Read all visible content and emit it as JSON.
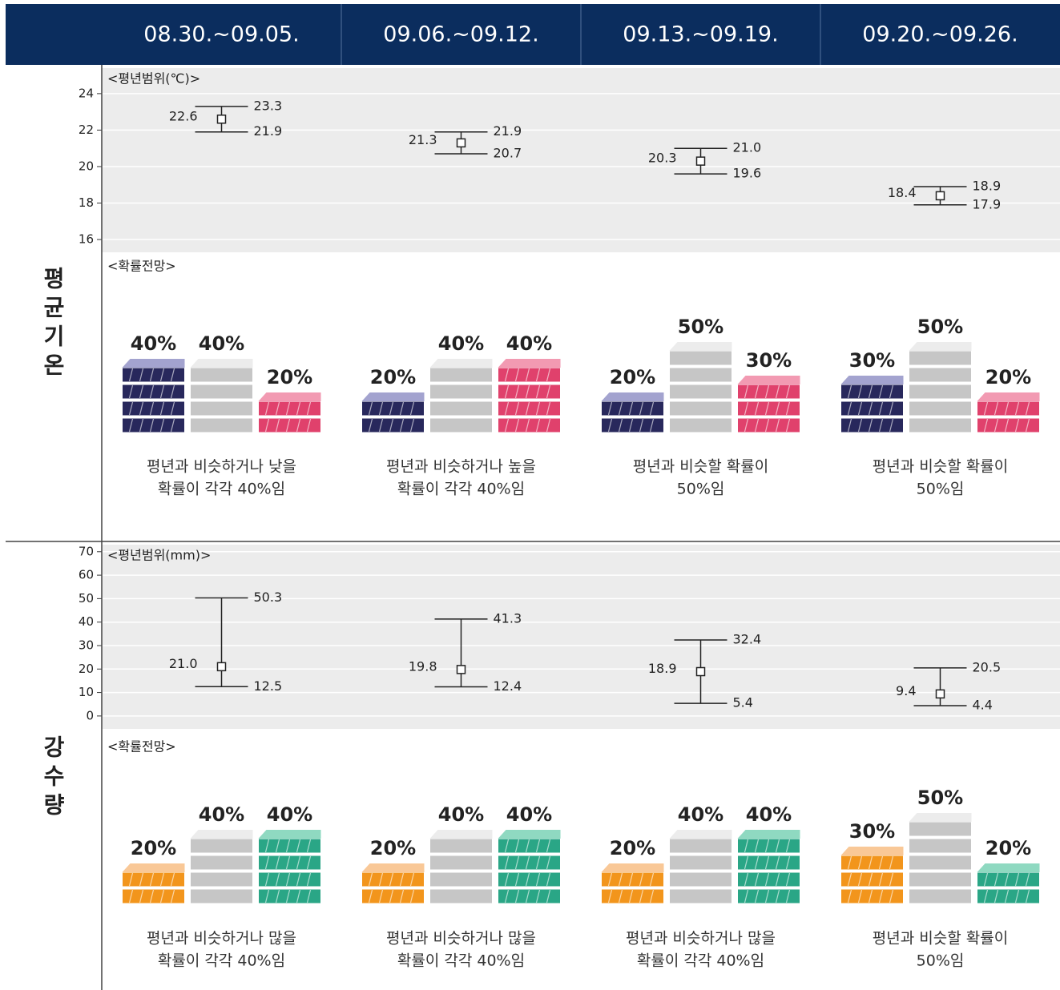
{
  "header": {
    "weeks": [
      "08.30.~09.05.",
      "09.06.~09.12.",
      "09.13.~09.19.",
      "09.20.~09.26."
    ]
  },
  "sections": [
    {
      "title": "평균기온",
      "range": {
        "label": "<평년범위(℃)>",
        "ylim": [
          15.3,
          25.4
        ],
        "yticks": [
          16,
          18,
          20,
          22,
          24
        ],
        "points": [
          {
            "mean": 22.6,
            "high": 23.3,
            "low": 21.9
          },
          {
            "mean": 21.3,
            "high": 21.9,
            "low": 20.7
          },
          {
            "mean": 20.3,
            "high": {
              "value": 21,
              "label": "21.0"
            },
            "low": 19.6
          },
          {
            "mean": 18.4,
            "high": 18.9,
            "low": 17.9
          }
        ]
      },
      "outlook_label": "<확률전망>",
      "front_colors": [
        "#28285c",
        "#c6c6c6",
        "#e0416c"
      ],
      "top_colors": [
        "#a3a3cf",
        "#ececec",
        "#f29ab2"
      ],
      "outlooks": [
        {
          "values": [
            40,
            40,
            20
          ],
          "value_labels": [
            "40%",
            "40%",
            "20%"
          ],
          "text": [
            "평년과 비슷하거나 낮을",
            "확률이 각각 40%임"
          ]
        },
        {
          "values": [
            20,
            40,
            40
          ],
          "value_labels": [
            "20%",
            "40%",
            "40%"
          ],
          "text": [
            "평년과 비슷하거나 높을",
            "확률이 각각 40%임"
          ]
        },
        {
          "values": [
            20,
            50,
            30
          ],
          "value_labels": [
            "20%",
            "50%",
            "30%"
          ],
          "text": [
            "평년과 비슷할 확률이",
            "50%임"
          ]
        },
        {
          "values": [
            30,
            50,
            20
          ],
          "value_labels": [
            "30%",
            "50%",
            "20%"
          ],
          "text": [
            "평년과 비슷할 확률이",
            "50%임"
          ]
        }
      ]
    },
    {
      "title": "강수량",
      "range": {
        "label": "<평년범위(mm)>",
        "ylim": [
          -5.5,
          73
        ],
        "yticks": [
          0,
          10,
          20,
          30,
          40,
          50,
          60,
          70
        ],
        "points": [
          {
            "mean": {
              "value": 21,
              "label": "21.0"
            },
            "high": 50.3,
            "low": 12.5
          },
          {
            "mean": 19.8,
            "high": 41.3,
            "low": 12.4
          },
          {
            "mean": 18.9,
            "high": 32.4,
            "low": 5.4
          },
          {
            "mean": 9.4,
            "high": 20.5,
            "low": 4.4
          }
        ]
      },
      "outlook_label": "<확률전망>",
      "front_colors": [
        "#f2951c",
        "#c6c6c6",
        "#2aa686"
      ],
      "top_colors": [
        "#f9c897",
        "#ececec",
        "#8fd9c1"
      ],
      "outlooks": [
        {
          "values": [
            20,
            40,
            40
          ],
          "value_labels": [
            "20%",
            "40%",
            "40%"
          ],
          "text": [
            "평년과 비슷하거나 많을",
            "확률이 각각 40%임"
          ]
        },
        {
          "values": [
            20,
            40,
            40
          ],
          "value_labels": [
            "20%",
            "40%",
            "40%"
          ],
          "text": [
            "평년과 비슷하거나 많을",
            "확률이 각각 40%임"
          ]
        },
        {
          "values": [
            20,
            40,
            40
          ],
          "value_labels": [
            "20%",
            "40%",
            "40%"
          ],
          "text": [
            "평년과 비슷하거나 많을",
            "확률이 각각 40%임"
          ]
        },
        {
          "values": [
            30,
            50,
            20
          ],
          "value_labels": [
            "30%",
            "50%",
            "20%"
          ],
          "text": [
            "평년과 비슷할 확률이",
            "50%임"
          ]
        }
      ]
    }
  ]
}
